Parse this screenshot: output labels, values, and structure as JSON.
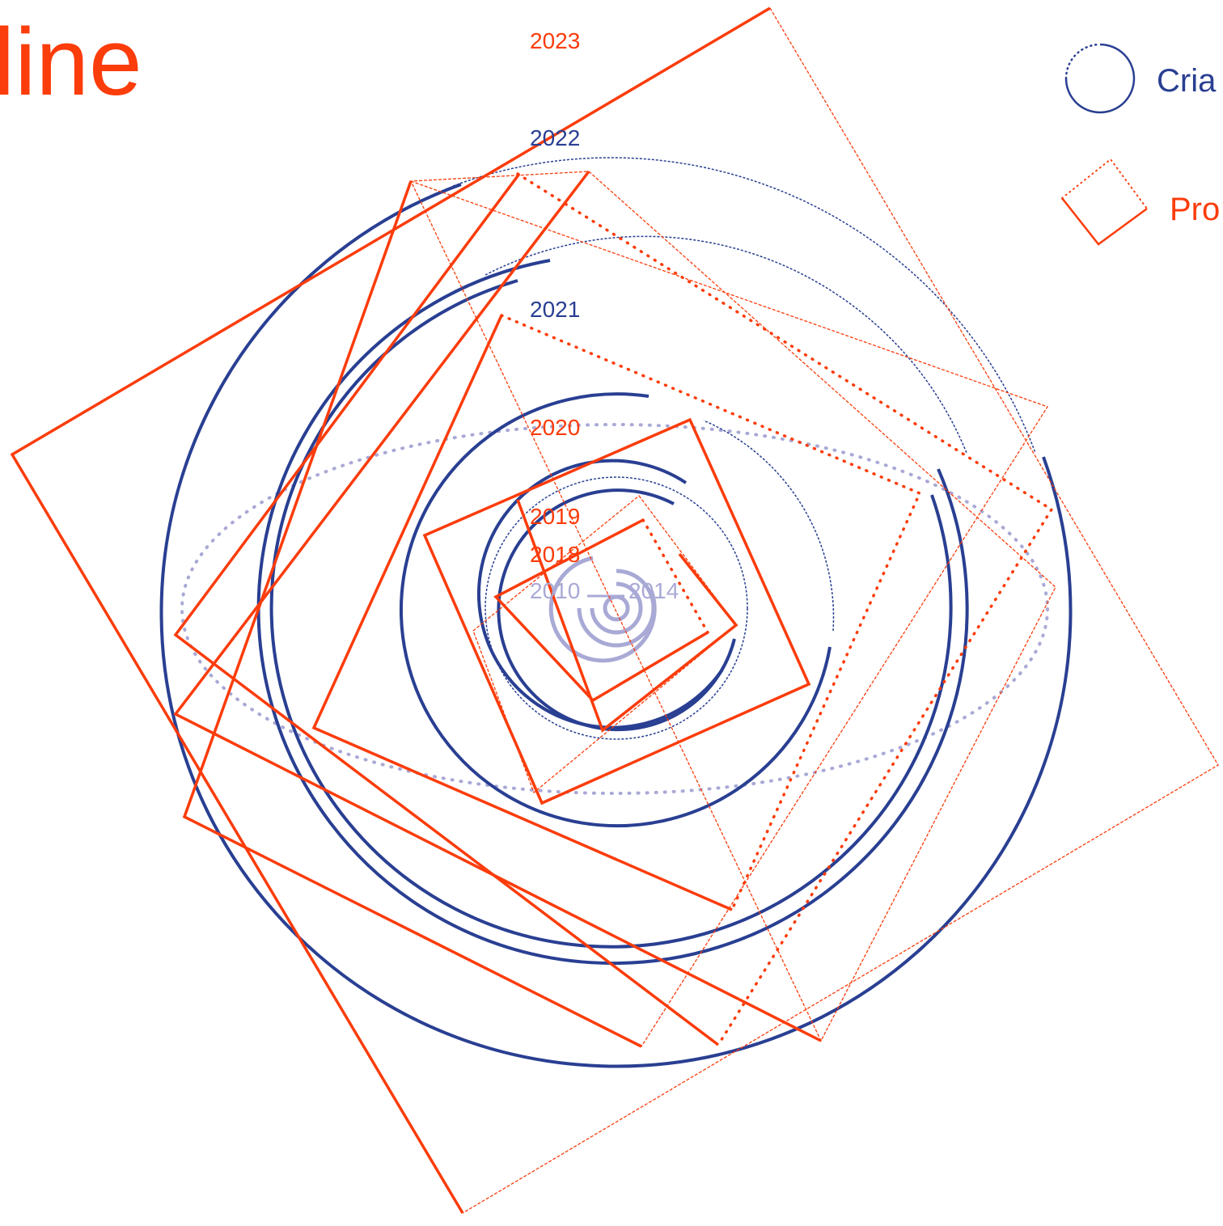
{
  "title": "line",
  "colors": {
    "orange": "#fb3c0b",
    "blue": "#293f92",
    "light": "#a9a9d6"
  },
  "legend": {
    "circle_label": "Cria",
    "square_label": "Pro"
  },
  "years": {
    "y2023": "2023",
    "y2022": "2022",
    "y2021": "2021",
    "y2020": "2020",
    "y2019": "2019",
    "y2018": "2018",
    "y2010": "2010",
    "y2014": "2014"
  }
}
